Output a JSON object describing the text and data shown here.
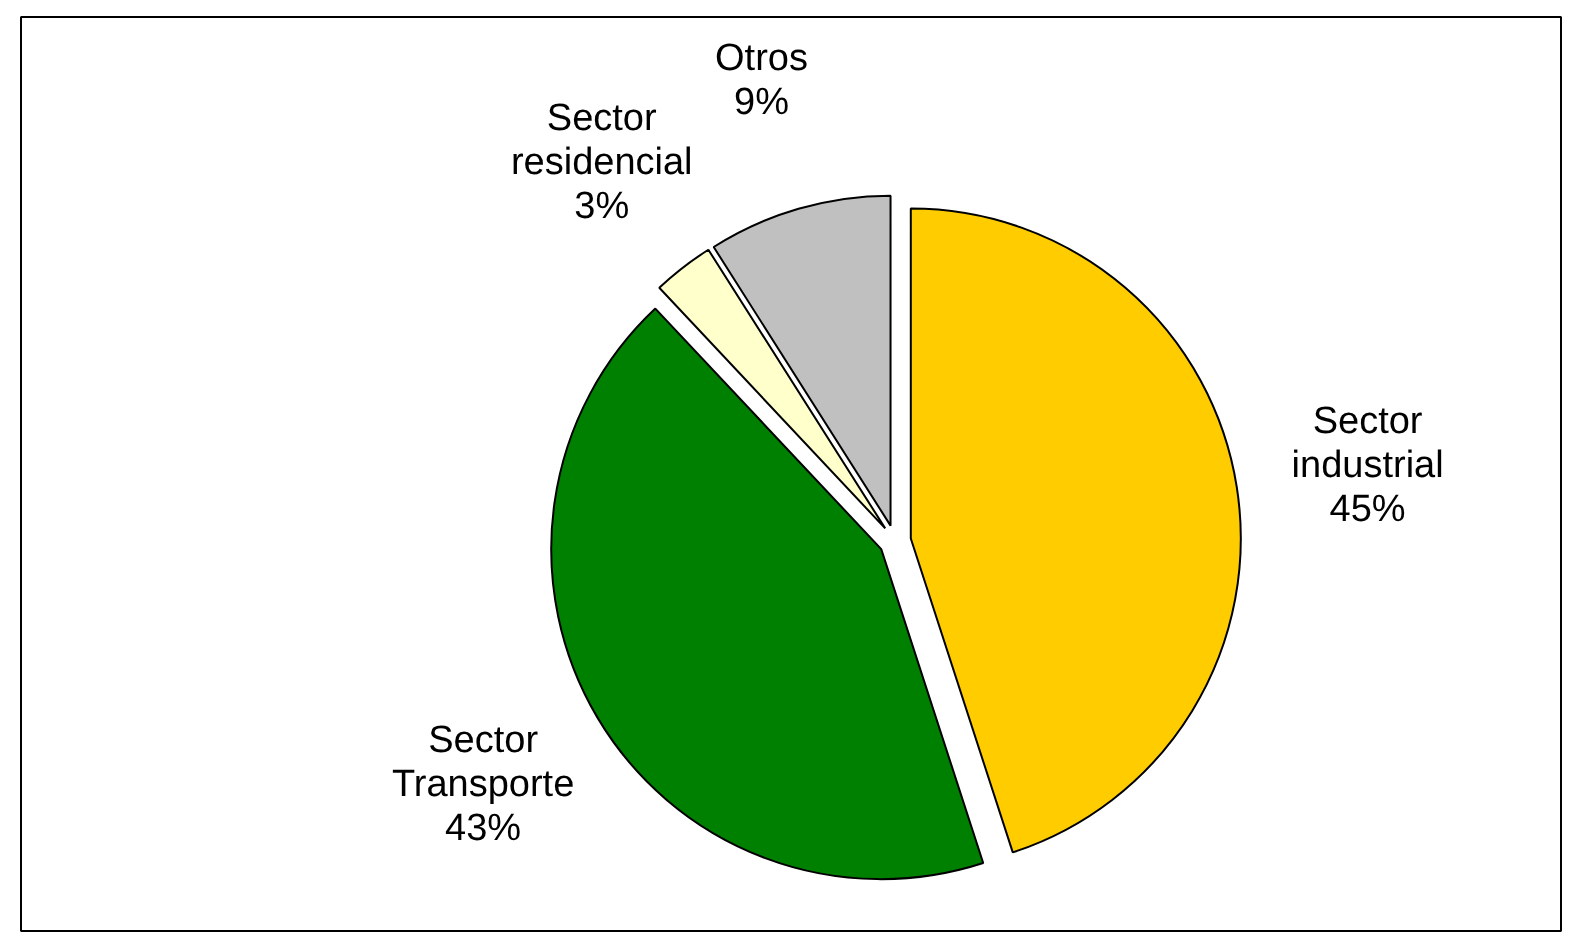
{
  "chart_data": {
    "type": "pie",
    "categories": [
      "Sector industrial",
      "Sector Transporte",
      "Sector residencial",
      "Otros"
    ],
    "values": [
      45,
      43,
      3,
      9
    ],
    "colors": [
      "#ffcc00",
      "#008000",
      "#ffffcc",
      "#c0c0c0"
    ],
    "value_labels": [
      "45%",
      "43%",
      "3%",
      "9%"
    ]
  }
}
